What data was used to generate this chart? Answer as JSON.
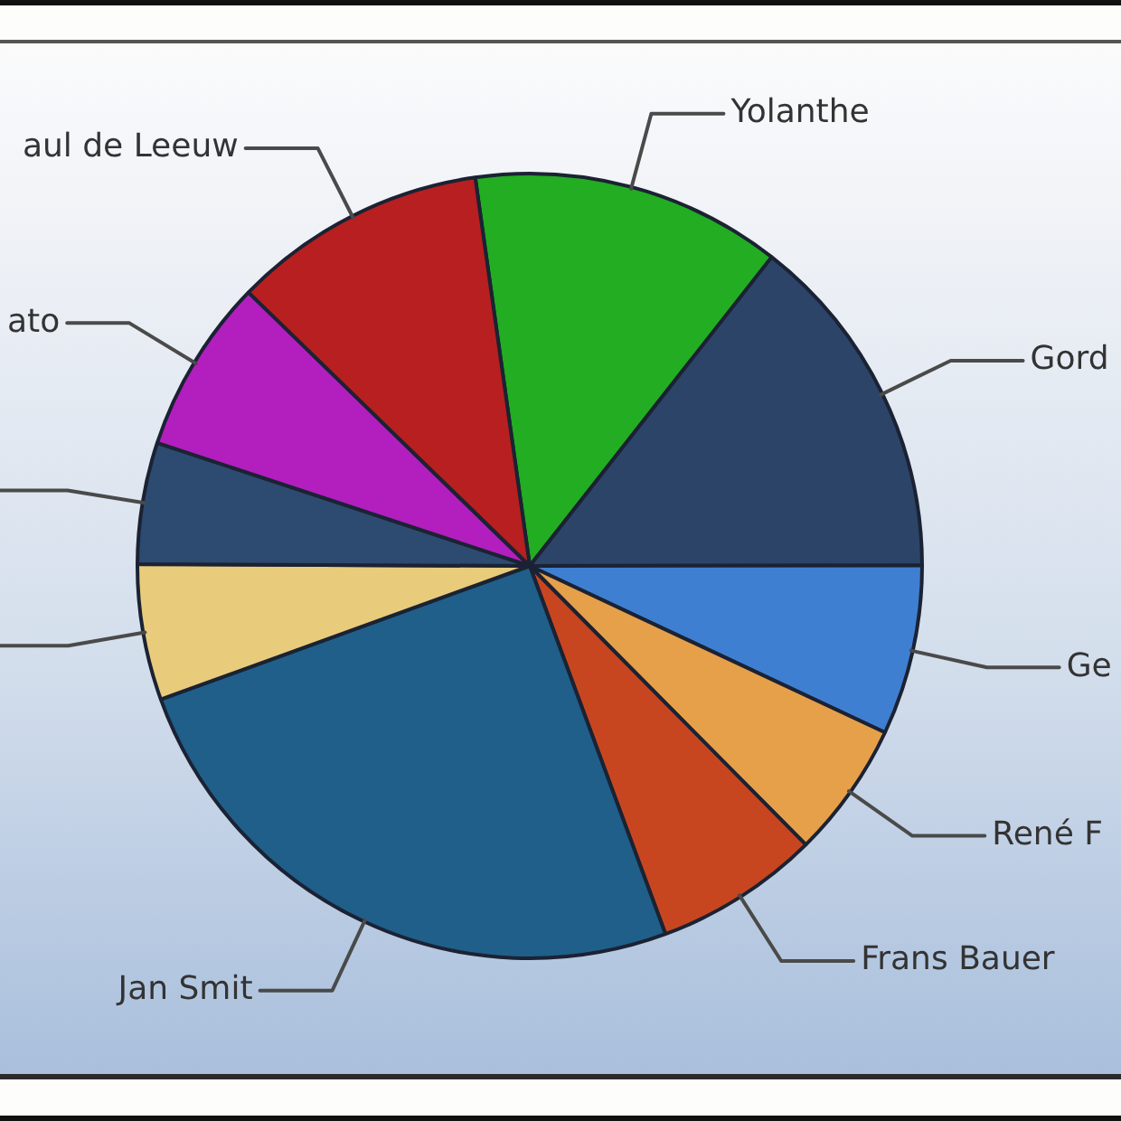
{
  "chart_data": {
    "type": "pie",
    "categories": [
      "Yolanthe",
      "Gord",
      "Ge",
      "René F",
      "Frans Bauer",
      "Jan Smit",
      null,
      null,
      "ato",
      "aul de Leeuw"
    ],
    "values": [
      12.8,
      14.4,
      7.0,
      5.6,
      6.8,
      25.1,
      5.6,
      5.0,
      7.2,
      10.5
    ],
    "colors": [
      "#22ad22",
      "#2c4468",
      "#3f7fd2",
      "#e6a04a",
      "#c8461f",
      "#1f5f8a",
      "#e8cc7c",
      "#2d4a70",
      "#b21fbe",
      "#b81f20"
    ]
  }
}
